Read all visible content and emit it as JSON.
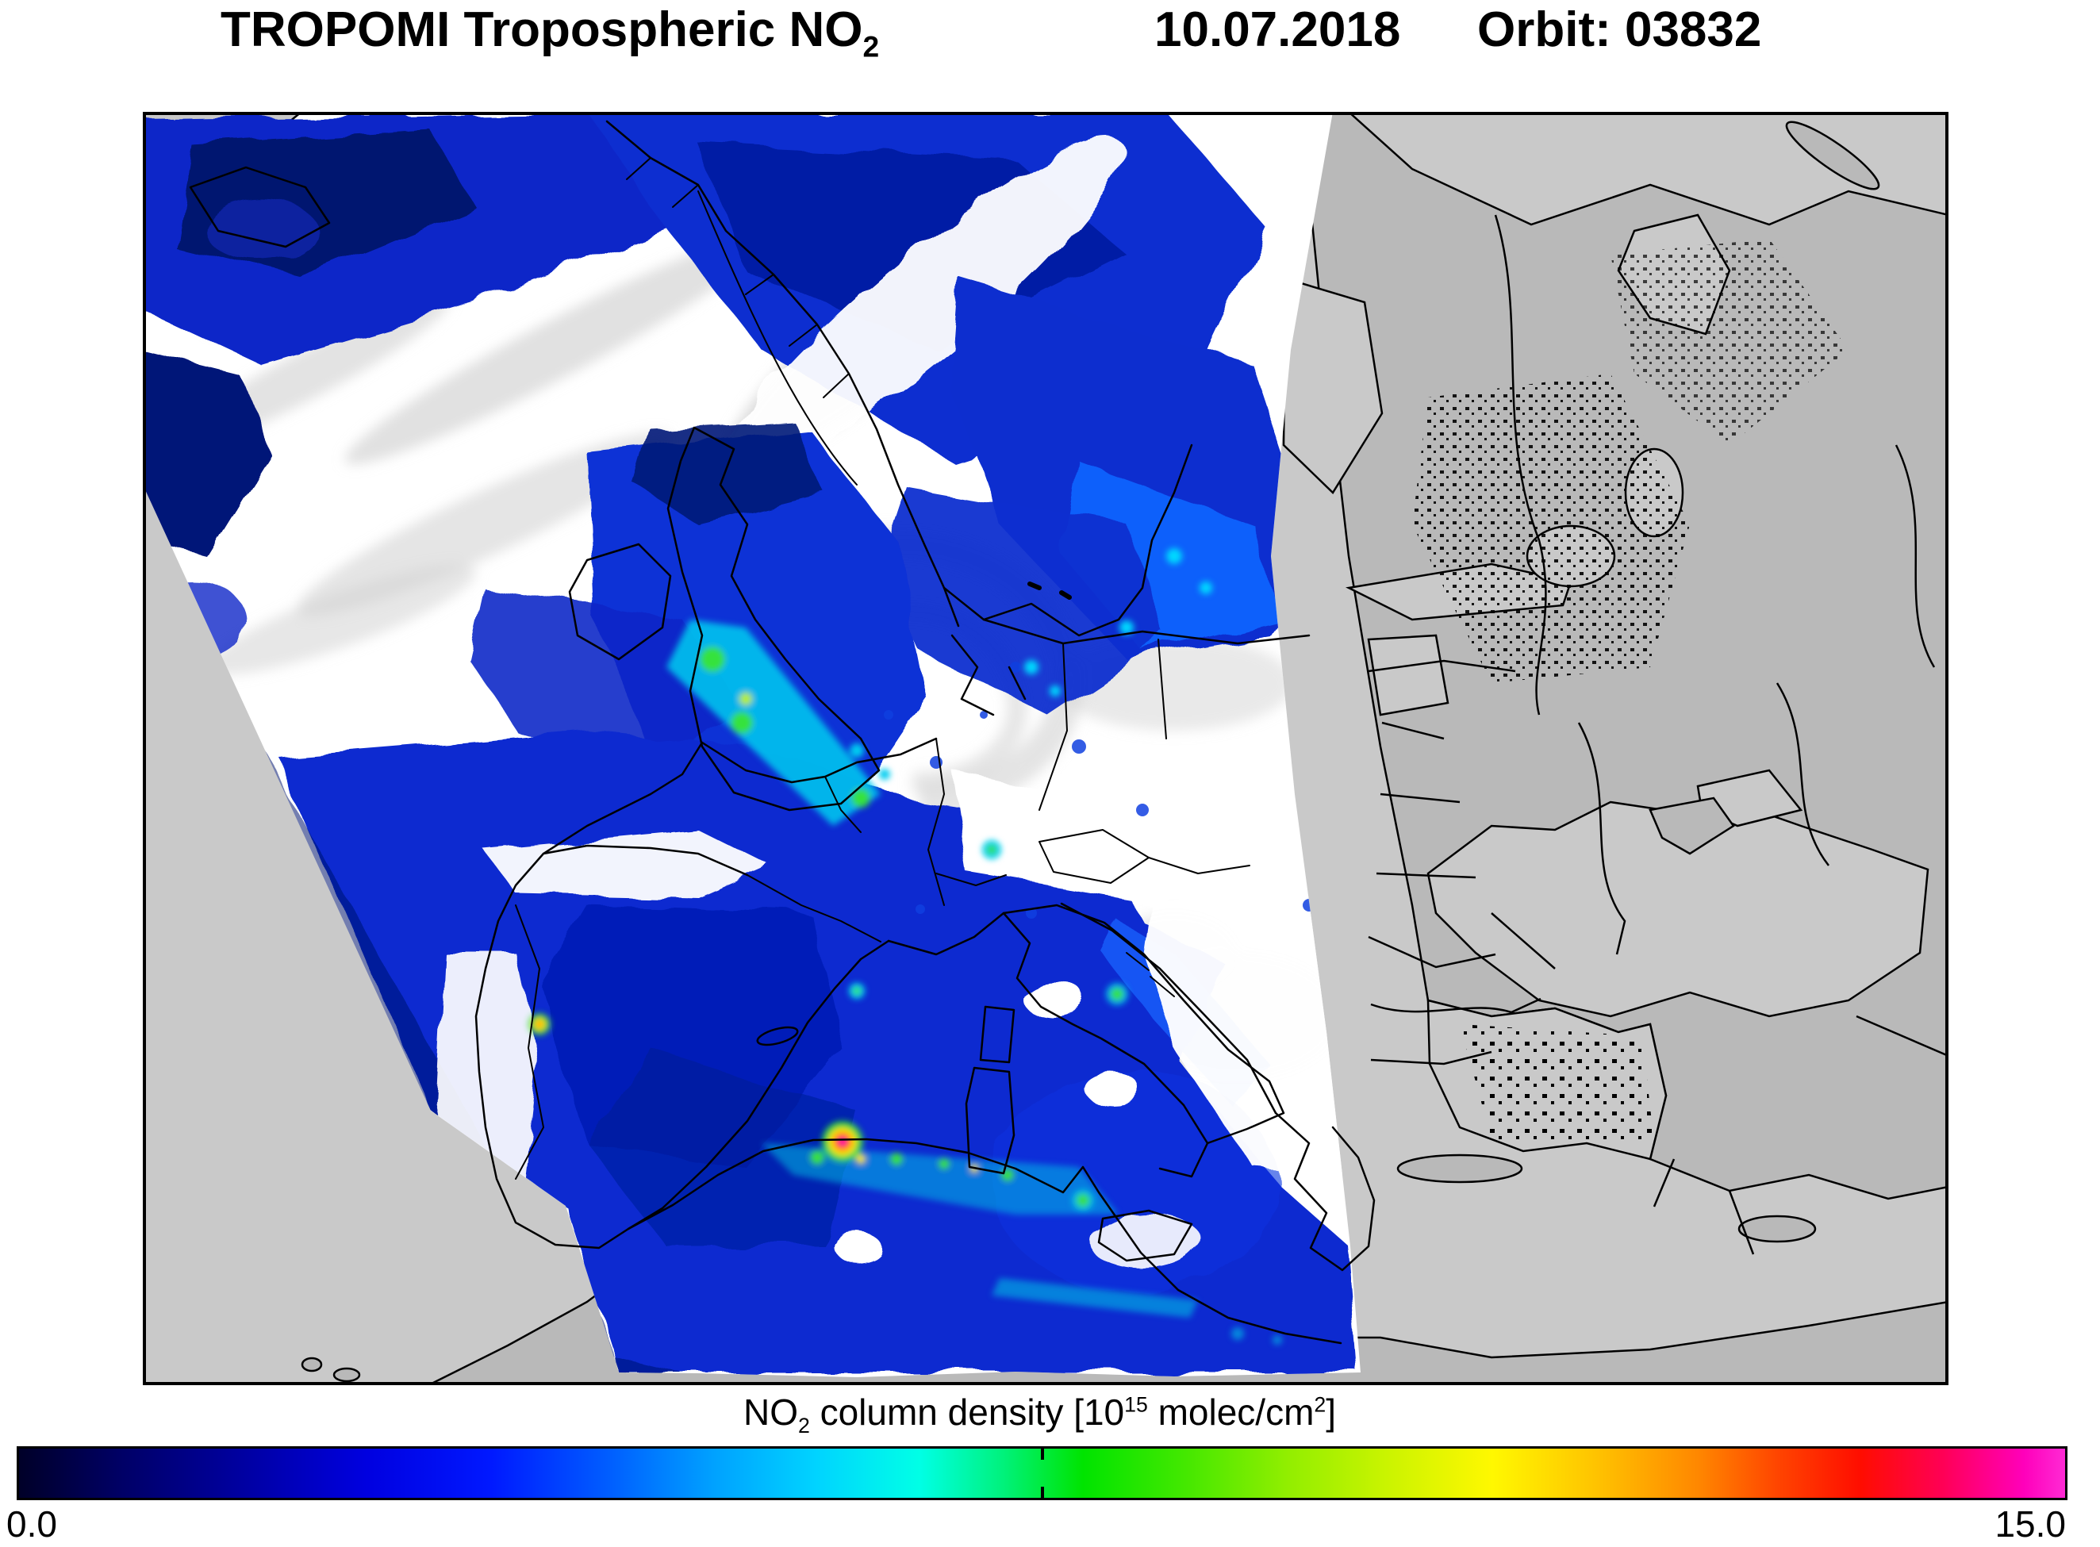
{
  "header": {
    "title_main": "TROPOMI Tropospheric NO",
    "title_sub": "2",
    "date": "10.07.2018",
    "orbit": "Orbit: 03832"
  },
  "colorbar": {
    "label": {
      "p1": "NO",
      "sub1": "2",
      "p2": " column density [10",
      "sup1": "15",
      "p3": " molec/cm",
      "sup2": "2",
      "p4": "]"
    },
    "min_label": "0.0",
    "max_label": "15.0",
    "min_value": 0.0,
    "max_value": 15.0,
    "mid_tick_fraction": 0.5,
    "gradient_stops": [
      "#000028 0%",
      "#000066 5%",
      "#0000a2 11%",
      "#0000e0 17%",
      "#0018ff 23%",
      "#0060ff 29%",
      "#00a2ff 34%",
      "#00d4ff 39%",
      "#00ffe6 44%",
      "#00f27e 48%",
      "#00e400 52%",
      "#44e800 57%",
      "#92ee00 62%",
      "#ccf400 67%",
      "#fff800 72%",
      "#ffc400 77%",
      "#ff8800 82%",
      "#ff4400 86%",
      "#ff0d00 90%",
      "#ff0055 94%",
      "#ff00bb 98%",
      "#ff2ad4 100%"
    ]
  },
  "map": {
    "no_data_sea_color": "#c9c9c9",
    "no_data_land_color": "#b9b9b9",
    "cloud_color": "#ffffff",
    "coastline_color": "#000000",
    "data_base_color": "#0a2cd2",
    "hotspot_peak_color": "#ff00bb",
    "description": "TROPOMI tropospheric NO2 swath over western Europe and the Mediterranean; gray area outside swath has no data"
  }
}
